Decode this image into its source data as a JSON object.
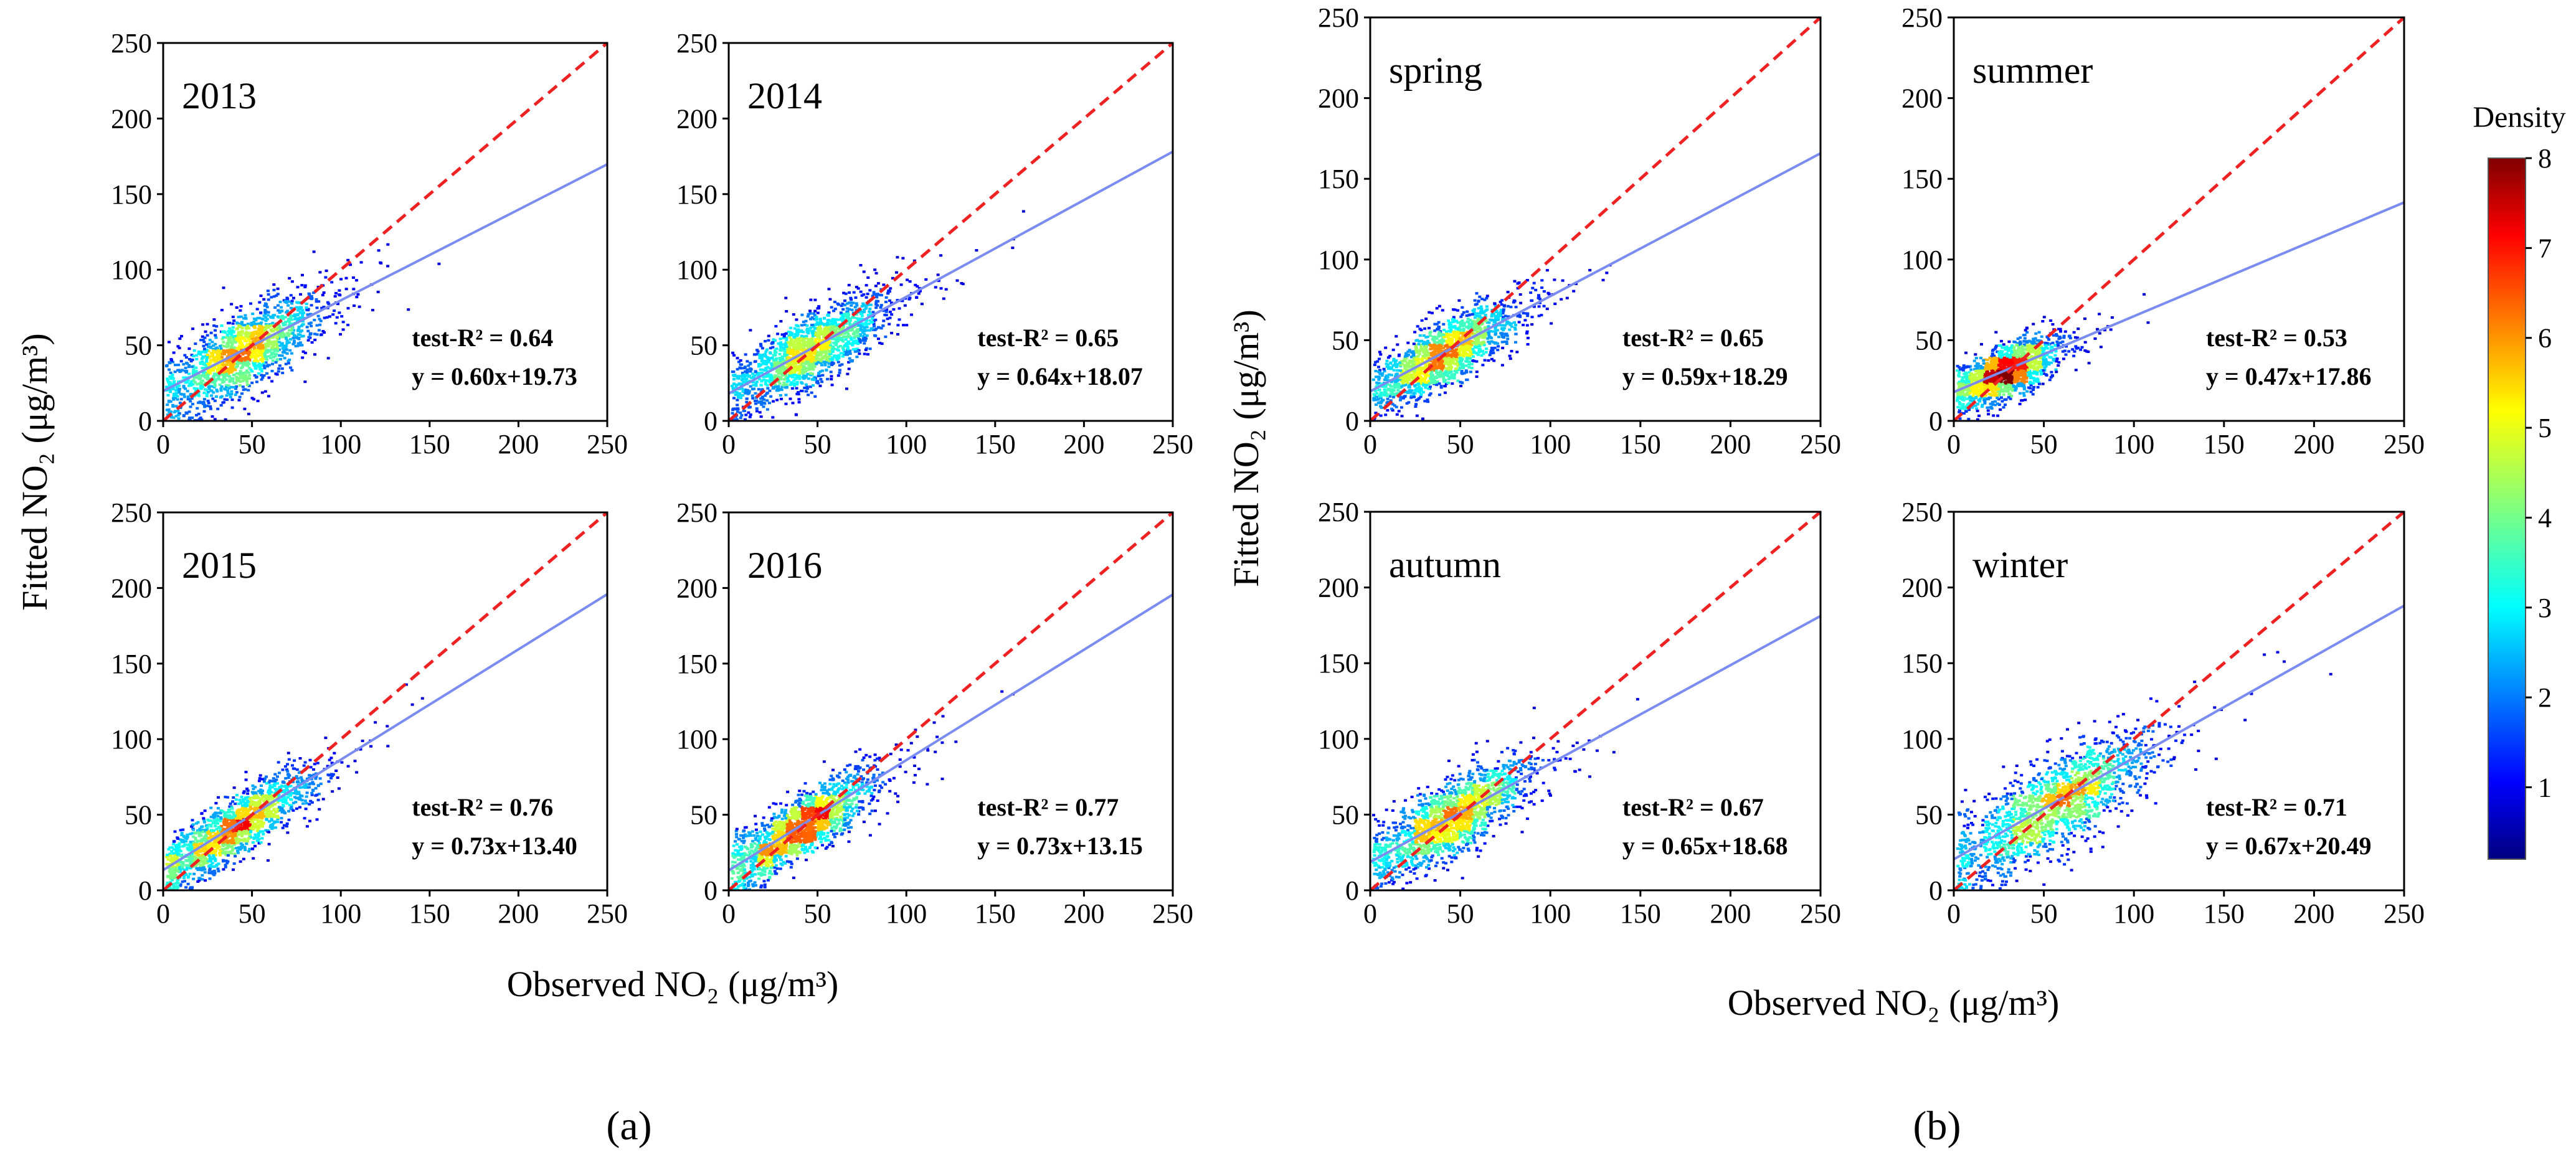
{
  "figure": {
    "x_axis_label": "Observed  NO₂ (μg/m³)",
    "y_axis_label": "Fitted  NO₂ (μg/m³)",
    "subfigure_labels": [
      "(a)",
      "(b)"
    ],
    "colorbar": {
      "title": "Density",
      "min": 0.2,
      "max": 8,
      "ticks": [
        1,
        2,
        3,
        4,
        5,
        6,
        7,
        8
      ]
    },
    "colors": {
      "one_to_one": "#ee2222",
      "fit": "#7b8cf0"
    }
  },
  "chart_data": [
    {
      "type": "scatter",
      "panel": "2013",
      "group": "a",
      "label": "2013",
      "r2_text": "test-R² = 0.64",
      "eq_text": "y = 0.60x+19.73",
      "slope": 0.6,
      "intercept": 19.73,
      "r2": 0.64,
      "xlim": [
        0,
        250
      ],
      "ylim": [
        0,
        250
      ],
      "xticks": [
        0,
        50,
        100,
        150,
        200,
        250
      ],
      "yticks": [
        0,
        50,
        100,
        150,
        200,
        250
      ],
      "obs_mean": 45,
      "obs_sd": 21,
      "noise": 13,
      "density_peak": 6
    },
    {
      "type": "scatter",
      "panel": "2014",
      "group": "a",
      "label": "2014",
      "r2_text": "test-R² = 0.65",
      "eq_text": "y = 0.64x+18.07",
      "slope": 0.64,
      "intercept": 18.07,
      "r2": 0.65,
      "xlim": [
        0,
        250
      ],
      "ylim": [
        0,
        250
      ],
      "xticks": [
        0,
        50,
        100,
        150,
        200,
        250
      ],
      "yticks": [
        0,
        50,
        100,
        150,
        200,
        250
      ],
      "obs_mean": 45,
      "obs_sd": 21,
      "noise": 12,
      "density_peak": 5
    },
    {
      "type": "scatter",
      "panel": "2015",
      "group": "a",
      "label": "2015",
      "r2_text": "test-R² = 0.76",
      "eq_text": "y = 0.73x+13.40",
      "slope": 0.73,
      "intercept": 13.4,
      "r2": 0.76,
      "xlim": [
        0,
        250
      ],
      "ylim": [
        0,
        250
      ],
      "xticks": [
        0,
        50,
        100,
        150,
        200,
        250
      ],
      "yticks": [
        0,
        50,
        100,
        150,
        200,
        250
      ],
      "obs_mean": 40,
      "obs_sd": 21,
      "noise": 10,
      "density_peak": 7
    },
    {
      "type": "scatter",
      "panel": "2016",
      "group": "a",
      "label": "2016",
      "r2_text": "test-R² = 0.77",
      "eq_text": "y = 0.73x+13.15",
      "slope": 0.73,
      "intercept": 13.15,
      "r2": 0.77,
      "xlim": [
        0,
        250
      ],
      "ylim": [
        0,
        250
      ],
      "xticks": [
        0,
        50,
        100,
        150,
        200,
        250
      ],
      "yticks": [
        0,
        50,
        100,
        150,
        200,
        250
      ],
      "obs_mean": 40,
      "obs_sd": 20,
      "noise": 10,
      "density_peak": 7
    },
    {
      "type": "scatter",
      "panel": "spring",
      "group": "b",
      "label": "spring",
      "r2_text": "test-R² = 0.65",
      "eq_text": "y = 0.59x+18.29",
      "slope": 0.59,
      "intercept": 18.29,
      "r2": 0.65,
      "xlim": [
        0,
        250
      ],
      "ylim": [
        0,
        250
      ],
      "xticks": [
        0,
        50,
        100,
        150,
        200,
        250
      ],
      "yticks": [
        0,
        50,
        100,
        150,
        200,
        250
      ],
      "obs_mean": 40,
      "obs_sd": 19,
      "noise": 10,
      "density_peak": 6
    },
    {
      "type": "scatter",
      "panel": "summer",
      "group": "b",
      "label": "summer",
      "r2_text": "test-R² = 0.53",
      "eq_text": "y = 0.47x+17.86",
      "slope": 0.47,
      "intercept": 17.86,
      "r2": 0.53,
      "xlim": [
        0,
        250
      ],
      "ylim": [
        0,
        250
      ],
      "xticks": [
        0,
        50,
        100,
        150,
        200,
        250
      ],
      "yticks": [
        0,
        50,
        100,
        150,
        200,
        250
      ],
      "obs_mean": 28,
      "obs_sd": 14,
      "noise": 8,
      "density_peak": 8
    },
    {
      "type": "scatter",
      "panel": "autumn",
      "group": "b",
      "label": "autumn",
      "r2_text": "test-R² = 0.67",
      "eq_text": "y = 0.65x+18.68",
      "slope": 0.65,
      "intercept": 18.68,
      "r2": 0.67,
      "xlim": [
        0,
        250
      ],
      "ylim": [
        0,
        250
      ],
      "xticks": [
        0,
        50,
        100,
        150,
        200,
        250
      ],
      "yticks": [
        0,
        50,
        100,
        150,
        200,
        250
      ],
      "obs_mean": 45,
      "obs_sd": 21,
      "noise": 12,
      "density_peak": 6
    },
    {
      "type": "scatter",
      "panel": "winter",
      "group": "b",
      "label": "winter",
      "r2_text": "test-R² = 0.71",
      "eq_text": "y = 0.67x+20.49",
      "slope": 0.67,
      "intercept": 20.49,
      "r2": 0.71,
      "xlim": [
        0,
        250
      ],
      "ylim": [
        0,
        250
      ],
      "xticks": [
        0,
        50,
        100,
        150,
        200,
        250
      ],
      "yticks": [
        0,
        50,
        100,
        150,
        200,
        250
      ],
      "obs_mean": 55,
      "obs_sd": 26,
      "noise": 15,
      "density_peak": 6
    }
  ]
}
